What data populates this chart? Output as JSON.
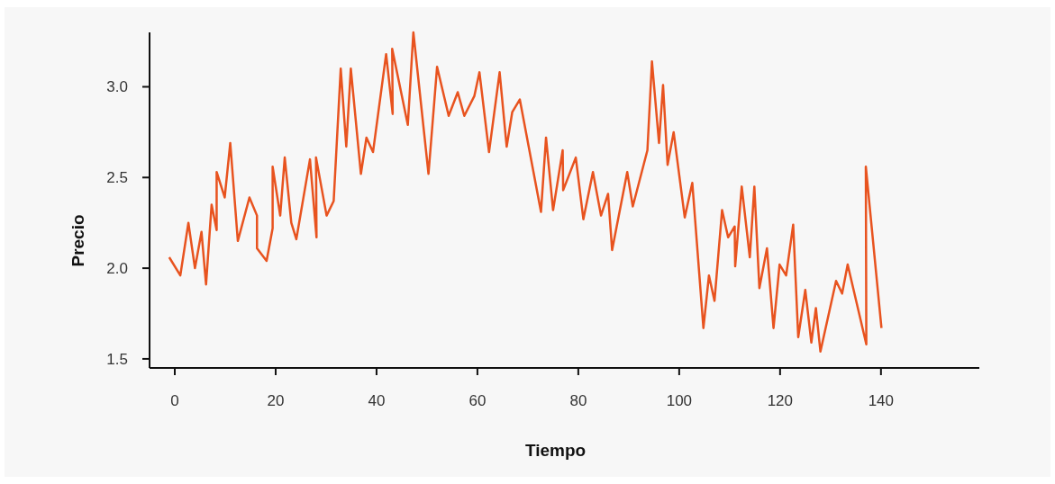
{
  "chart_data": {
    "type": "line",
    "xlabel": "Tiempo",
    "ylabel": "Precio",
    "x": [
      -1.1,
      1.1,
      2.7,
      4.0,
      5.3,
      6.2,
      7.3,
      8.3,
      8.3,
      9.9,
      11.0,
      12.5,
      14.8,
      16.3,
      16.3,
      18.2,
      19.4,
      19.4,
      20.9,
      21.8,
      23.1,
      24.1,
      26.8,
      28.1,
      28.0,
      30.1,
      31.5,
      32.9,
      34.0,
      34.9,
      36.9,
      38.0,
      39.3,
      41.9,
      43.2,
      43.1,
      46.2,
      47.3,
      50.3,
      52.0,
      54.3,
      56.1,
      57.4,
      59.4,
      60.4,
      62.3,
      64.4,
      65.8,
      66.9,
      68.4,
      72.6,
      73.6,
      75.0,
      76.9,
      77.0,
      79.5,
      81.0,
      82.9,
      84.5,
      85.9,
      86.7,
      89.7,
      90.8,
      93.7,
      94.6,
      96.0,
      96.8,
      97.7,
      98.9,
      101.1,
      102.6,
      104.8,
      105.9,
      107.0,
      108.5,
      109.7,
      111.0,
      111.1,
      112.4,
      114.0,
      114.9,
      115.9,
      117.4,
      118.7,
      119.9,
      121.2,
      122.6,
      123.6,
      125.0,
      126.2,
      127.1,
      128.0,
      131.1,
      132.3,
      133.4,
      137.1,
      137.0,
      140.1
    ],
    "series": [
      {
        "color": "#e8531f",
        "values": [
          2.06,
          1.96,
          2.25,
          2.0,
          2.2,
          1.91,
          2.35,
          2.21,
          2.53,
          2.39,
          2.69,
          2.15,
          2.39,
          2.29,
          2.11,
          2.04,
          2.22,
          2.56,
          2.29,
          2.61,
          2.25,
          2.16,
          2.6,
          2.17,
          2.61,
          2.29,
          2.37,
          3.1,
          2.67,
          3.1,
          2.52,
          2.72,
          2.64,
          3.18,
          2.85,
          3.21,
          2.79,
          3.3,
          2.52,
          3.11,
          2.84,
          2.97,
          2.84,
          2.95,
          3.08,
          2.64,
          3.08,
          2.67,
          2.86,
          2.93,
          2.31,
          2.72,
          2.32,
          2.65,
          2.43,
          2.61,
          2.27,
          2.53,
          2.29,
          2.41,
          2.1,
          2.53,
          2.34,
          2.65,
          3.14,
          2.69,
          3.01,
          2.57,
          2.75,
          2.28,
          2.47,
          1.67,
          1.96,
          1.82,
          2.32,
          2.17,
          2.23,
          2.01,
          2.45,
          2.06,
          2.45,
          1.89,
          2.11,
          1.67,
          2.02,
          1.96,
          2.24,
          1.62,
          1.88,
          1.59,
          1.78,
          1.54,
          1.93,
          1.86,
          2.02,
          1.58,
          2.56,
          1.67
        ]
      }
    ],
    "xlim": [
      -5,
      159.5
    ],
    "ylim": [
      1.45,
      3.3
    ],
    "xticks": [
      0,
      20,
      40,
      60,
      80,
      100,
      120,
      140
    ],
    "yticks": [
      {
        "value": 1.5,
        "label": "1.5"
      },
      {
        "value": 2.0,
        "label": "2.0"
      },
      {
        "value": 2.5,
        "label": "2.5"
      },
      {
        "value": 3.0,
        "label": "3.0"
      }
    ],
    "grid": false,
    "marker": "none",
    "line_style": "solid"
  }
}
